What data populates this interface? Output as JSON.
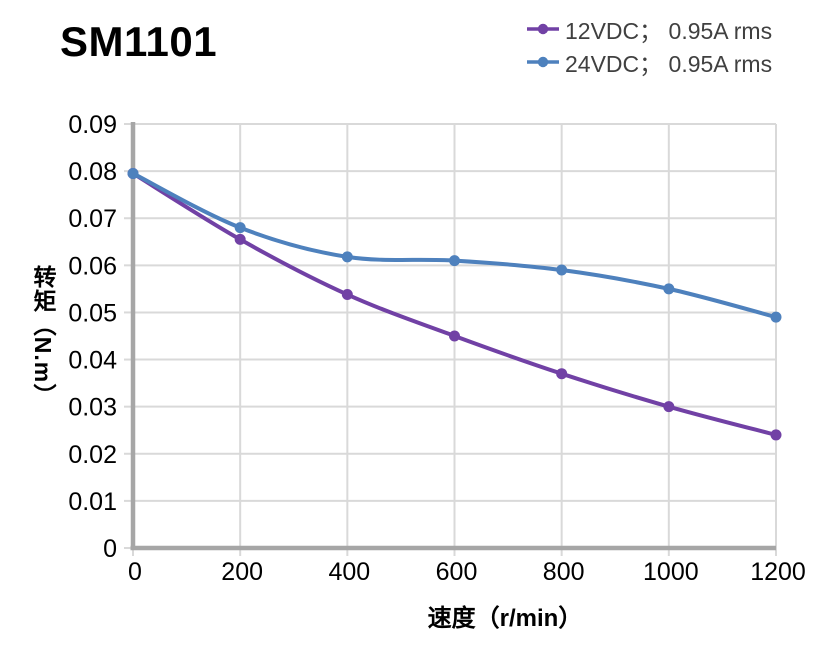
{
  "title": "SM1101",
  "legend": {
    "position": "top-right",
    "items": [
      {
        "label": "12VDC； 0.95A rms",
        "color": "#7141A5"
      },
      {
        "label": "24VDC； 0.95A rms",
        "color": "#4E81BD"
      }
    ]
  },
  "chart_data": {
    "type": "line",
    "title": "SM1101",
    "xlabel": "速度（r/min）",
    "ylabel": "转矩（N.m）",
    "xlim": [
      0,
      1200
    ],
    "ylim": [
      0,
      0.09
    ],
    "grid": true,
    "legend_position": "top-right",
    "x": [
      0,
      200,
      400,
      600,
      800,
      1000,
      1200
    ],
    "series": [
      {
        "name": "12VDC； 0.95A rms",
        "color": "#7141A5",
        "values": [
          0.0795,
          0.0655,
          0.0538,
          0.045,
          0.037,
          0.03,
          0.024
        ]
      },
      {
        "name": "24VDC； 0.95A rms",
        "color": "#4E81BD",
        "values": [
          0.0795,
          0.068,
          0.0618,
          0.061,
          0.059,
          0.055,
          0.049
        ]
      }
    ],
    "x_ticks": [
      {
        "v": 0,
        "label": "0"
      },
      {
        "v": 200,
        "label": "200"
      },
      {
        "v": 400,
        "label": "400"
      },
      {
        "v": 600,
        "label": "600"
      },
      {
        "v": 800,
        "label": "800"
      },
      {
        "v": 1000,
        "label": "1000"
      },
      {
        "v": 1200,
        "label": "1200"
      }
    ],
    "y_ticks": [
      {
        "v": 0,
        "label": "0"
      },
      {
        "v": 0.01,
        "label": "0.01"
      },
      {
        "v": 0.02,
        "label": "0.02"
      },
      {
        "v": 0.03,
        "label": "0.03"
      },
      {
        "v": 0.04,
        "label": "0.04"
      },
      {
        "v": 0.05,
        "label": "0.05"
      },
      {
        "v": 0.06,
        "label": "0.06"
      },
      {
        "v": 0.07,
        "label": "0.07"
      },
      {
        "v": 0.08,
        "label": "0.08"
      },
      {
        "v": 0.09,
        "label": "0.09"
      }
    ],
    "colors": {
      "gridline": "#D9D9D9",
      "axis": "#A6A6A6",
      "tick_text": "#000000",
      "legend_text": "#404040",
      "title_text": "#000000"
    }
  }
}
